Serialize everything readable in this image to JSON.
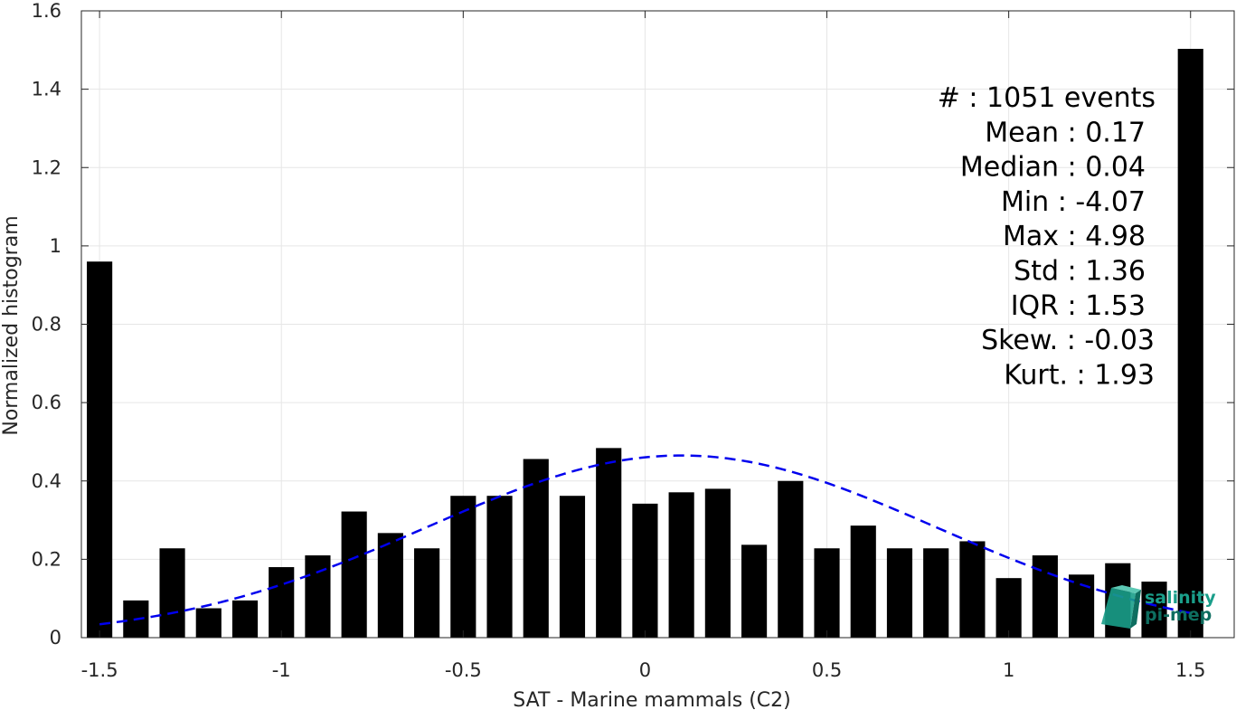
{
  "chart_data": {
    "type": "bar",
    "xlabel": "SAT - Marine mammals (C2)",
    "ylabel": "Normalized histogram",
    "xlim": [
      -1.55,
      1.62
    ],
    "ylim": [
      0,
      1.6
    ],
    "xticks": [
      -1.5,
      -1,
      -0.5,
      0,
      0.5,
      1,
      1.5
    ],
    "xtick_labels": [
      "-1.5",
      "-1",
      "-0.5",
      "0",
      "0.5",
      "1",
      "1.5"
    ],
    "yticks": [
      0,
      0.2,
      0.4,
      0.6,
      0.8,
      1,
      1.2,
      1.4,
      1.6
    ],
    "ytick_labels": [
      "0",
      "0.2",
      "0.4",
      "0.6",
      "0.8",
      "1",
      "1.2",
      "1.4",
      "1.6"
    ],
    "grid": true,
    "bar_color": "#000000",
    "x": [
      -1.5,
      -1.4,
      -1.3,
      -1.2,
      -1.1,
      -1.0,
      -0.9,
      -0.8,
      -0.7,
      -0.6,
      -0.5,
      -0.4,
      -0.3,
      -0.2,
      -0.1,
      0.0,
      0.1,
      0.2,
      0.3,
      0.4,
      0.5,
      0.6,
      0.7,
      0.8,
      0.9,
      1.0,
      1.1,
      1.2,
      1.3,
      1.4,
      1.5
    ],
    "values": [
      0.96,
      0.095,
      0.228,
      0.075,
      0.095,
      0.18,
      0.21,
      0.322,
      0.267,
      0.228,
      0.362,
      0.362,
      0.456,
      0.362,
      0.484,
      0.342,
      0.371,
      0.38,
      0.237,
      0.4,
      0.228,
      0.286,
      0.228,
      0.228,
      0.246,
      0.152,
      0.21,
      0.161,
      0.19,
      0.143,
      1.503
    ],
    "fit_curve": {
      "style": "dashed",
      "color": "#0000ee",
      "mean": 0.1,
      "peak": 0.465,
      "sigma": 0.7,
      "x_range": [
        -1.5,
        1.5
      ]
    },
    "stats": [
      "#  : 1051 events",
      "Mean : 0.17",
      "Median : 0.04",
      "Min : -4.07",
      "Max : 4.98",
      "Std : 1.36",
      "IQR : 1.53",
      "Skew. : -0.03",
      "Kurt. : 1.93"
    ]
  },
  "logo": {
    "line1": "salinity",
    "line2": "pi-mep",
    "color": "#1a9e8a"
  }
}
